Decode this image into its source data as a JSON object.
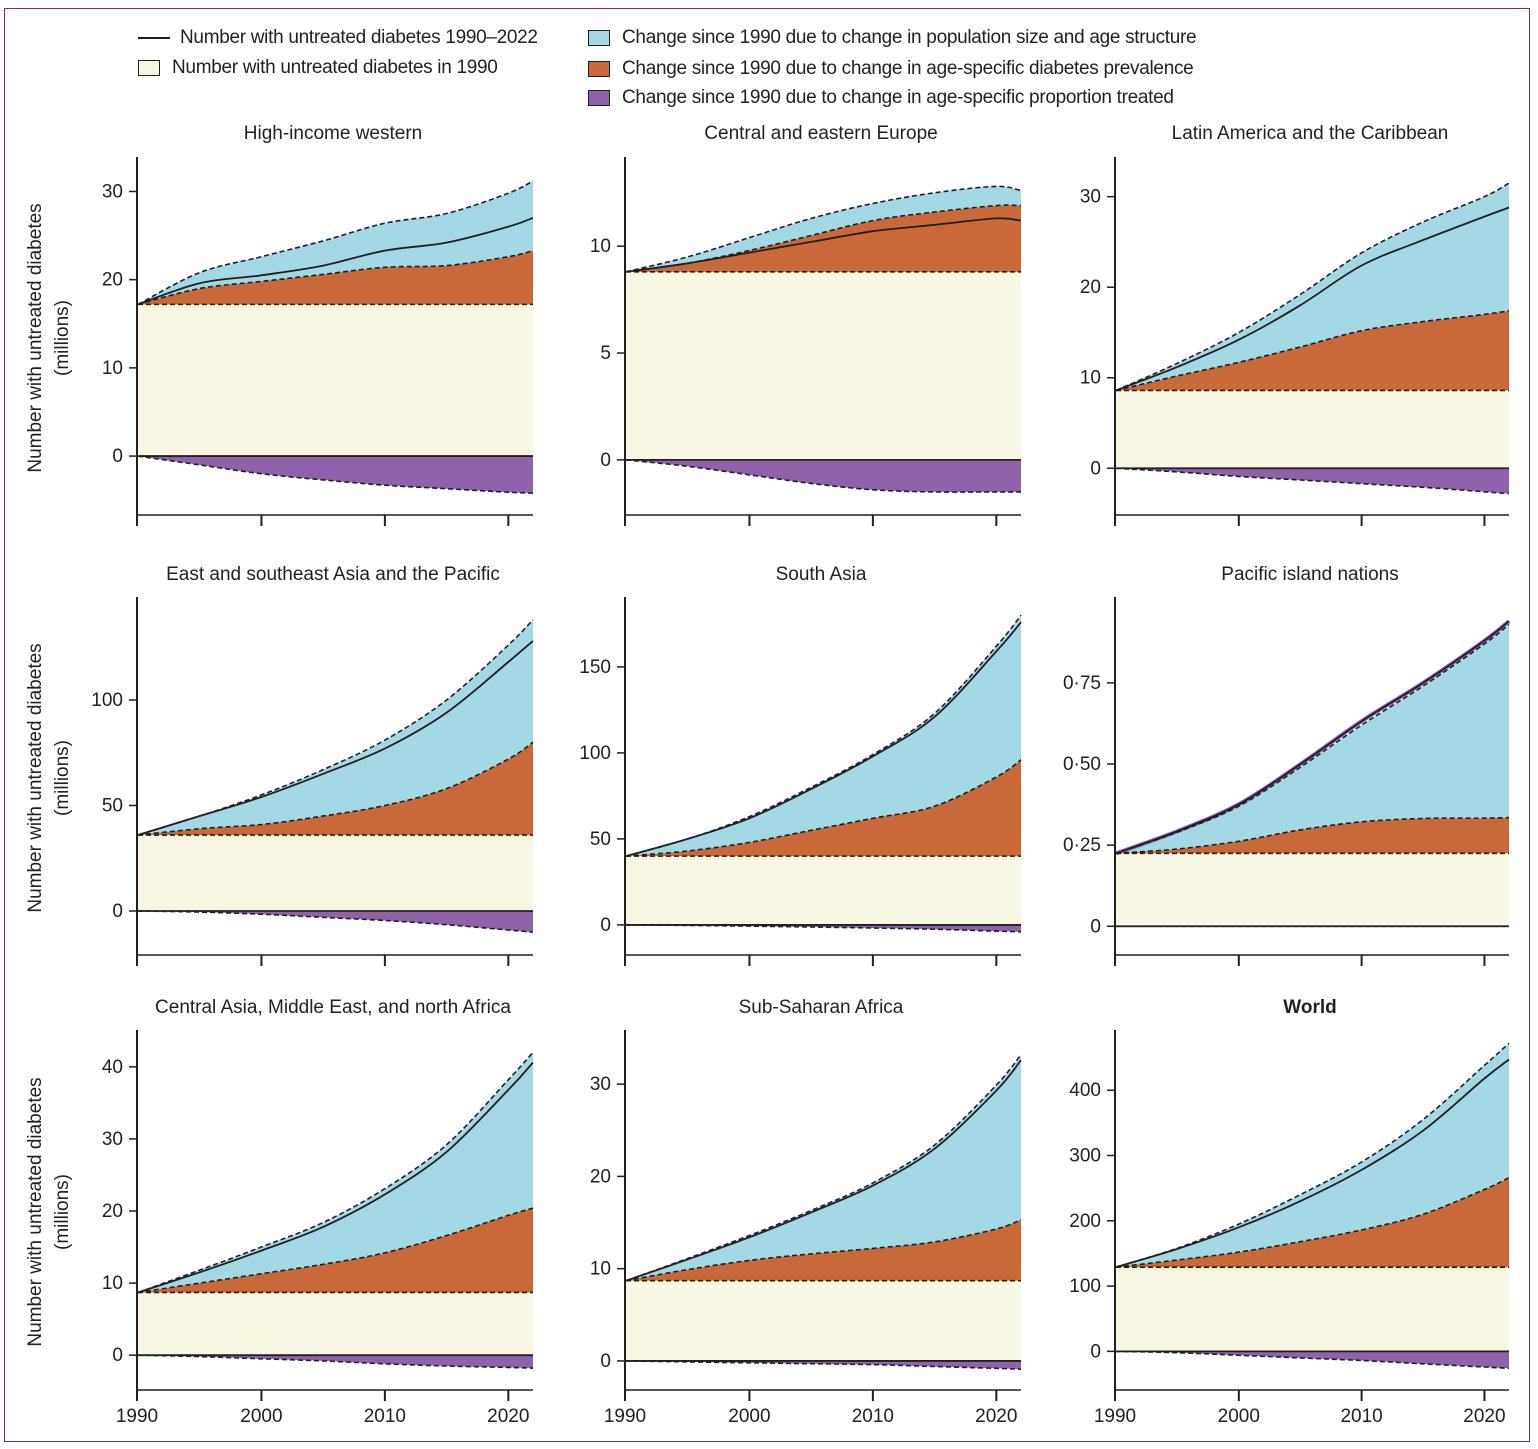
{
  "colors": {
    "baseline": "#f8f7e3",
    "population": "#a3d9e5",
    "prevalence": "#c9693a",
    "treatment": "#8e63ab",
    "line": "#231f20",
    "frame": "#8b2a5a"
  },
  "legend": {
    "items": [
      {
        "key": "line",
        "label": "Number with untreated diabetes 1990–2022",
        "kind": "line"
      },
      {
        "key": "baseline",
        "label": "Number with untreated diabetes in 1990",
        "kind": "swatch"
      },
      {
        "key": "population",
        "label": "Change since 1990 due to change in population size and age structure",
        "kind": "swatch"
      },
      {
        "key": "prevalence",
        "label": "Change since 1990 due to change in age-specific diabetes prevalence",
        "kind": "swatch"
      },
      {
        "key": "treatment",
        "label": "Change since 1990 due to change in age-specific proportion treated",
        "kind": "swatch"
      }
    ]
  },
  "ylabel_line1": "Number with untreated diabetes",
  "ylabel_line2": "(millions)",
  "chart_data": [
    {
      "type": "area",
      "title": "High-income western",
      "bold_title": false,
      "ylabel": "Number with untreated diabetes (millions)",
      "x": [
        1990,
        1995,
        2000,
        2005,
        2010,
        2015,
        2020,
        2022
      ],
      "ylim": [
        -6,
        33
      ],
      "yticks": [
        0,
        10,
        20,
        30
      ],
      "ytick_labels": [
        "0",
        "10",
        "20",
        "30"
      ],
      "xticks": [
        1990,
        2000,
        2010,
        2020
      ],
      "xtick_labels": [],
      "baseline_1990": 17.2,
      "prevalence_top": [
        17.2,
        19.0,
        19.8,
        20.6,
        21.4,
        21.6,
        22.6,
        23.3
      ],
      "population_top": [
        17.2,
        20.8,
        22.6,
        24.4,
        26.4,
        27.5,
        29.8,
        31.2
      ],
      "treatment_bottom": [
        0,
        -1.0,
        -2.0,
        -2.7,
        -3.3,
        -3.7,
        -4.1,
        -4.2
      ],
      "total": [
        17.2,
        19.6,
        20.5,
        21.6,
        23.3,
        24.2,
        26.0,
        27.0
      ]
    },
    {
      "type": "area",
      "title": "Central and eastern Europe",
      "bold_title": false,
      "ylabel": "",
      "x": [
        1990,
        1995,
        2000,
        2005,
        2010,
        2015,
        2020,
        2022
      ],
      "ylim": [
        -2.3,
        13.8
      ],
      "yticks": [
        0,
        5,
        10
      ],
      "ytick_labels": [
        "0",
        "5",
        "10"
      ],
      "xticks": [
        1990,
        2000,
        2010,
        2020
      ],
      "xtick_labels": [],
      "baseline_1990": 8.8,
      "prevalence_top": [
        8.8,
        9.2,
        9.8,
        10.5,
        11.2,
        11.6,
        11.9,
        11.9
      ],
      "population_top": [
        8.8,
        9.5,
        10.4,
        11.3,
        12.0,
        12.5,
        12.8,
        12.6
      ],
      "treatment_bottom": [
        0,
        -0.3,
        -0.7,
        -1.1,
        -1.4,
        -1.5,
        -1.5,
        -1.5
      ],
      "total": [
        8.8,
        9.2,
        9.7,
        10.2,
        10.7,
        11.0,
        11.3,
        11.2
      ]
    },
    {
      "type": "area",
      "title": "Latin America and the Caribbean",
      "bold_title": false,
      "ylabel": "",
      "x": [
        1990,
        1995,
        2000,
        2005,
        2010,
        2015,
        2020,
        2022
      ],
      "ylim": [
        -4.5,
        33.5
      ],
      "yticks": [
        0,
        10,
        20,
        30
      ],
      "ytick_labels": [
        "0",
        "10",
        "20",
        "30"
      ],
      "xticks": [
        1990,
        2000,
        2010,
        2020
      ],
      "xtick_labels": [],
      "baseline_1990": 8.6,
      "prevalence_top": [
        8.6,
        10.2,
        11.7,
        13.4,
        15.2,
        16.2,
        17.0,
        17.4
      ],
      "population_top": [
        8.6,
        11.6,
        15.0,
        19.2,
        23.8,
        27.2,
        30.0,
        31.5
      ],
      "treatment_bottom": [
        0,
        -0.4,
        -0.9,
        -1.3,
        -1.7,
        -2.1,
        -2.6,
        -2.8
      ],
      "total": [
        8.6,
        11.2,
        14.2,
        18.0,
        22.4,
        25.2,
        27.8,
        28.8
      ]
    },
    {
      "type": "area",
      "title": "East and southeast Asia and the Pacific",
      "bold_title": false,
      "ylabel": "Number with untreated diabetes (millions)",
      "x": [
        1990,
        1995,
        2000,
        2005,
        2010,
        2015,
        2020,
        2022
      ],
      "ylim": [
        -18,
        145
      ],
      "yticks": [
        0,
        50,
        100
      ],
      "ytick_labels": [
        "0",
        "50",
        "100"
      ],
      "xticks": [
        1990,
        2000,
        2010,
        2020
      ],
      "xtick_labels": [],
      "baseline_1990": 36,
      "prevalence_top": [
        36,
        39,
        41,
        45,
        50,
        58,
        72,
        80
      ],
      "population_top": [
        36,
        45,
        55,
        67,
        81,
        100,
        126,
        138
      ],
      "treatment_bottom": [
        0,
        -0.5,
        -1.5,
        -3,
        -4.5,
        -6.5,
        -9,
        -10
      ],
      "total": [
        36,
        45,
        54,
        65,
        77,
        94,
        118,
        128
      ]
    },
    {
      "type": "area",
      "title": "South Asia",
      "bold_title": false,
      "ylabel": "",
      "x": [
        1990,
        1995,
        2000,
        2005,
        2010,
        2015,
        2020,
        2022
      ],
      "ylim": [
        -14,
        186
      ],
      "yticks": [
        0,
        50,
        100,
        150
      ],
      "ytick_labels": [
        "0",
        "50",
        "100",
        "150"
      ],
      "xticks": [
        1990,
        2000,
        2010,
        2020
      ],
      "xtick_labels": [],
      "baseline_1990": 40,
      "prevalence_top": [
        40,
        43,
        48,
        55,
        62,
        69,
        86,
        96
      ],
      "population_top": [
        40,
        50,
        63,
        80,
        99,
        123,
        162,
        180
      ],
      "treatment_bottom": [
        0,
        -0.3,
        -0.7,
        -1.2,
        -1.8,
        -2.5,
        -3.6,
        -4
      ],
      "total": [
        40,
        50,
        62,
        79,
        98,
        121,
        159,
        176
      ]
    },
    {
      "type": "area",
      "title": "Pacific island nations",
      "bold_title": false,
      "ylabel": "",
      "x": [
        1990,
        1995,
        2000,
        2005,
        2010,
        2015,
        2020,
        2022
      ],
      "ylim": [
        -0.07,
        0.99
      ],
      "yticks": [
        0,
        0.25,
        0.5,
        0.75
      ],
      "ytick_labels": [
        "0",
        "0·25",
        "0·50",
        "0·75"
      ],
      "xticks": [
        1990,
        2000,
        2010,
        2020
      ],
      "xtick_labels": [],
      "baseline_1990": 0.225,
      "prevalence_top": [
        0.225,
        0.238,
        0.262,
        0.297,
        0.322,
        0.332,
        0.333,
        0.335
      ],
      "population_top": [
        0.225,
        0.29,
        0.37,
        0.49,
        0.62,
        0.74,
        0.87,
        0.93
      ],
      "treatment_bottom": [
        0,
        0,
        0,
        0,
        0,
        0,
        0,
        0
      ],
      "total": [
        0.225,
        0.293,
        0.376,
        0.499,
        0.632,
        0.75,
        0.88,
        0.94
      ]
    },
    {
      "type": "area",
      "title": "Central Asia, Middle East, and north Africa",
      "bold_title": false,
      "ylabel": "Number with untreated diabetes (millions)",
      "x": [
        1990,
        1995,
        2000,
        2005,
        2010,
        2015,
        2020,
        2022
      ],
      "ylim": [
        -4,
        44
      ],
      "yticks": [
        0,
        10,
        20,
        30,
        40
      ],
      "ytick_labels": [
        "0",
        "10",
        "20",
        "30",
        "40"
      ],
      "xticks": [
        1990,
        2000,
        2010,
        2020
      ],
      "xtick_labels": [
        "1990",
        "2000",
        "2010",
        "2020"
      ],
      "baseline_1990": 8.7,
      "prevalence_top": [
        8.7,
        10.0,
        11.3,
        12.6,
        14.2,
        16.6,
        19.4,
        20.4
      ],
      "population_top": [
        8.7,
        11.8,
        15.0,
        18.4,
        23.1,
        29.2,
        38.2,
        42.0
      ],
      "treatment_bottom": [
        0,
        -0.2,
        -0.5,
        -0.8,
        -1.2,
        -1.5,
        -1.7,
        -1.8
      ],
      "total": [
        8.7,
        11.5,
        14.5,
        17.8,
        22.3,
        28.2,
        36.8,
        40.6
      ]
    },
    {
      "type": "area",
      "title": "Sub-Saharan Africa",
      "bold_title": false,
      "ylabel": "",
      "x": [
        1990,
        1995,
        2000,
        2005,
        2010,
        2015,
        2020,
        2022
      ],
      "ylim": [
        -2.5,
        35
      ],
      "yticks": [
        0,
        10,
        20,
        30
      ],
      "ytick_labels": [
        "0",
        "10",
        "20",
        "30"
      ],
      "xticks": [
        1990,
        2000,
        2010,
        2020
      ],
      "xtick_labels": [
        "1990",
        "2000",
        "2010",
        "2020"
      ],
      "baseline_1990": 8.7,
      "prevalence_top": [
        8.7,
        9.9,
        10.9,
        11.6,
        12.2,
        12.9,
        14.3,
        15.3
      ],
      "population_top": [
        8.7,
        11.1,
        13.6,
        16.3,
        19.3,
        23.4,
        29.9,
        33.2
      ],
      "treatment_bottom": [
        0,
        -0.1,
        -0.2,
        -0.3,
        -0.4,
        -0.6,
        -0.8,
        -0.9
      ],
      "total": [
        8.7,
        11.0,
        13.4,
        16.1,
        19.0,
        23.0,
        29.3,
        32.6
      ]
    },
    {
      "type": "area",
      "title": "World",
      "bold_title": true,
      "ylabel": "",
      "x": [
        1990,
        1995,
        2000,
        2005,
        2010,
        2015,
        2020,
        2022
      ],
      "ylim": [
        -50,
        480
      ],
      "yticks": [
        0,
        100,
        200,
        300,
        400
      ],
      "ytick_labels": [
        "0",
        "100",
        "200",
        "300",
        "400"
      ],
      "xticks": [
        1990,
        2000,
        2010,
        2020
      ],
      "xtick_labels": [
        "1990",
        "2000",
        "2010",
        "2020"
      ],
      "baseline_1990": 129,
      "prevalence_top": [
        129,
        140,
        152,
        168,
        186,
        210,
        248,
        266
      ],
      "population_top": [
        129,
        158,
        195,
        240,
        290,
        355,
        438,
        472
      ],
      "treatment_bottom": [
        0,
        -2,
        -6,
        -10,
        -14,
        -19,
        -24,
        -26
      ],
      "total": [
        129,
        157,
        190,
        230,
        278,
        338,
        418,
        447
      ]
    }
  ]
}
